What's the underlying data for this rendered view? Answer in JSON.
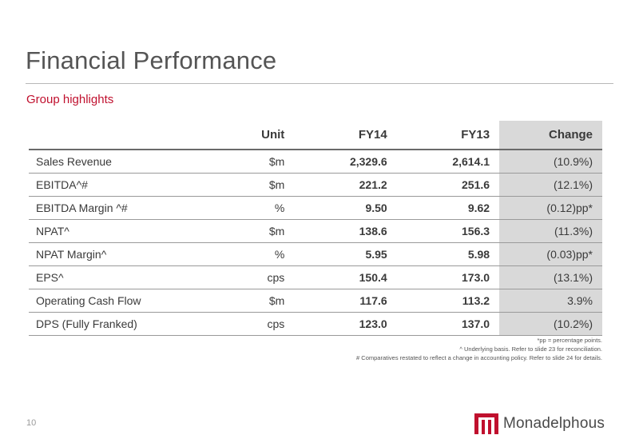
{
  "page": {
    "title": "Financial Performance",
    "subtitle": "Group highlights",
    "page_number": "10"
  },
  "table": {
    "headers": [
      "",
      "Unit",
      "FY14",
      "FY13",
      "Change"
    ],
    "rows": [
      {
        "label": "Sales Revenue",
        "unit": "$m",
        "fy14": "2,329.6",
        "fy13": "2,614.1",
        "change": "(10.9%)"
      },
      {
        "label": "EBITDA^#",
        "unit": "$m",
        "fy14": "221.2",
        "fy13": "251.6",
        "change": "(12.1%)"
      },
      {
        "label": "EBITDA Margin ^#",
        "unit": "%",
        "fy14": "9.50",
        "fy13": "9.62",
        "change": "(0.12)pp*"
      },
      {
        "label": "NPAT^",
        "unit": "$m",
        "fy14": "138.6",
        "fy13": "156.3",
        "change": "(11.3%)"
      },
      {
        "label": "NPAT Margin^",
        "unit": "%",
        "fy14": "5.95",
        "fy13": "5.98",
        "change": "(0.03)pp*"
      },
      {
        "label": "EPS^",
        "unit": "cps",
        "fy14": "150.4",
        "fy13": "173.0",
        "change": "(13.1%)"
      },
      {
        "label": "Operating Cash Flow",
        "unit": "$m",
        "fy14": "117.6",
        "fy13": "113.2",
        "change": "3.9%"
      },
      {
        "label": "DPS (Fully Franked)",
        "unit": "cps",
        "fy14": "123.0",
        "fy13": "137.0",
        "change": "(10.2%)"
      }
    ]
  },
  "footnotes": [
    "*pp = percentage points.",
    "^ Underlying basis. Refer to slide 23 for reconciliation.",
    "# Comparatives restated to reflect a change in accounting policy. Refer to slide 24 for details."
  ],
  "logo": {
    "name": "Monadelphous",
    "icon": "monadelphous-logo-icon"
  },
  "colors": {
    "accent_red": "#c0102e",
    "change_column_bg": "#d9d9d9",
    "title_gray": "#555555"
  }
}
